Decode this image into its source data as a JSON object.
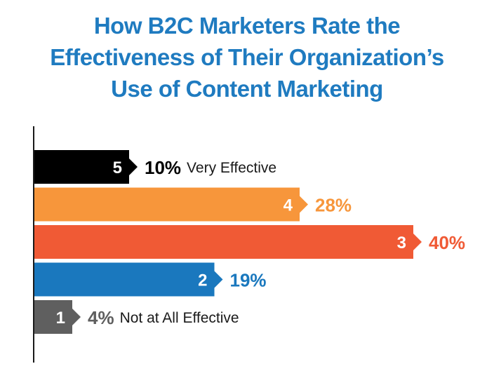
{
  "title_lines": [
    "How B2C Marketers Rate the",
    "Effectiveness of Their Organization’s",
    "Use of Content Marketing"
  ],
  "colors": {
    "title": "#1f7bc0",
    "axis": "#1a1a1a"
  },
  "chart_data": {
    "type": "bar",
    "orientation": "horizontal",
    "title": "How B2C Marketers Rate the Effectiveness of Their Organization’s Use of Content Marketing",
    "categories": [
      "5",
      "4",
      "3",
      "2",
      "1"
    ],
    "values": [
      10,
      28,
      40,
      19,
      4
    ],
    "value_labels": [
      "10%",
      "28%",
      "40%",
      "19%",
      "4%"
    ],
    "descriptions": [
      "Very Effective",
      "",
      "",
      "",
      "Not at All Effective"
    ],
    "colors": [
      "#000000",
      "#f7963b",
      "#f05a35",
      "#1a78be",
      "#5f5f5f"
    ],
    "label_colors": [
      "#000000",
      "#f7963b",
      "#f05a35",
      "#1a78be",
      "#5f5f5f"
    ],
    "xlim": [
      0,
      40
    ],
    "grid": false,
    "legend": "none"
  }
}
